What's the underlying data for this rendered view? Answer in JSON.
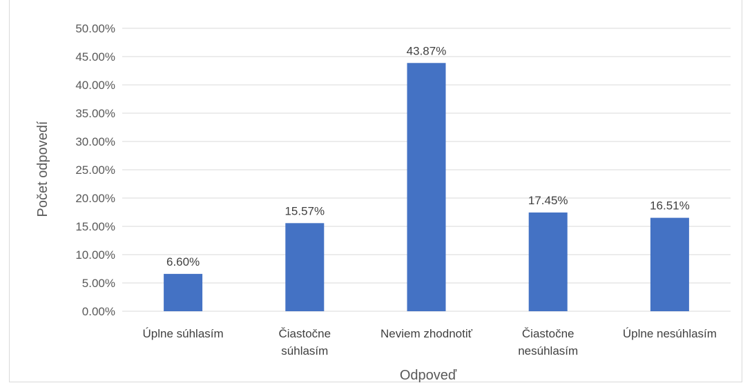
{
  "chart_data": {
    "type": "bar",
    "title": "",
    "categories": [
      [
        "Úplne súhlasím"
      ],
      [
        "Čiastočne",
        "súhlasím"
      ],
      [
        "Neviem zhodnotiť"
      ],
      [
        "Čiastočne",
        "nesúhlasím"
      ],
      [
        "Úplne nesúhlasím"
      ]
    ],
    "values": [
      6.6,
      15.57,
      43.87,
      17.45,
      16.51
    ],
    "value_labels": [
      "6.60%",
      "15.57%",
      "43.87%",
      "17.45%",
      "16.51%"
    ],
    "ylim": [
      0,
      50
    ],
    "y_ticks": [
      "0.00%",
      "5.00%",
      "10.00%",
      "15.00%",
      "20.00%",
      "25.00%",
      "30.00%",
      "35.00%",
      "40.00%",
      "45.00%",
      "50.00%"
    ],
    "xlabel": "Odpoveď",
    "ylabel": "Počet odpovedí",
    "grid": true,
    "legend": "none",
    "bar_color": "#4472c4",
    "grid_color": "#d9d9d9"
  }
}
